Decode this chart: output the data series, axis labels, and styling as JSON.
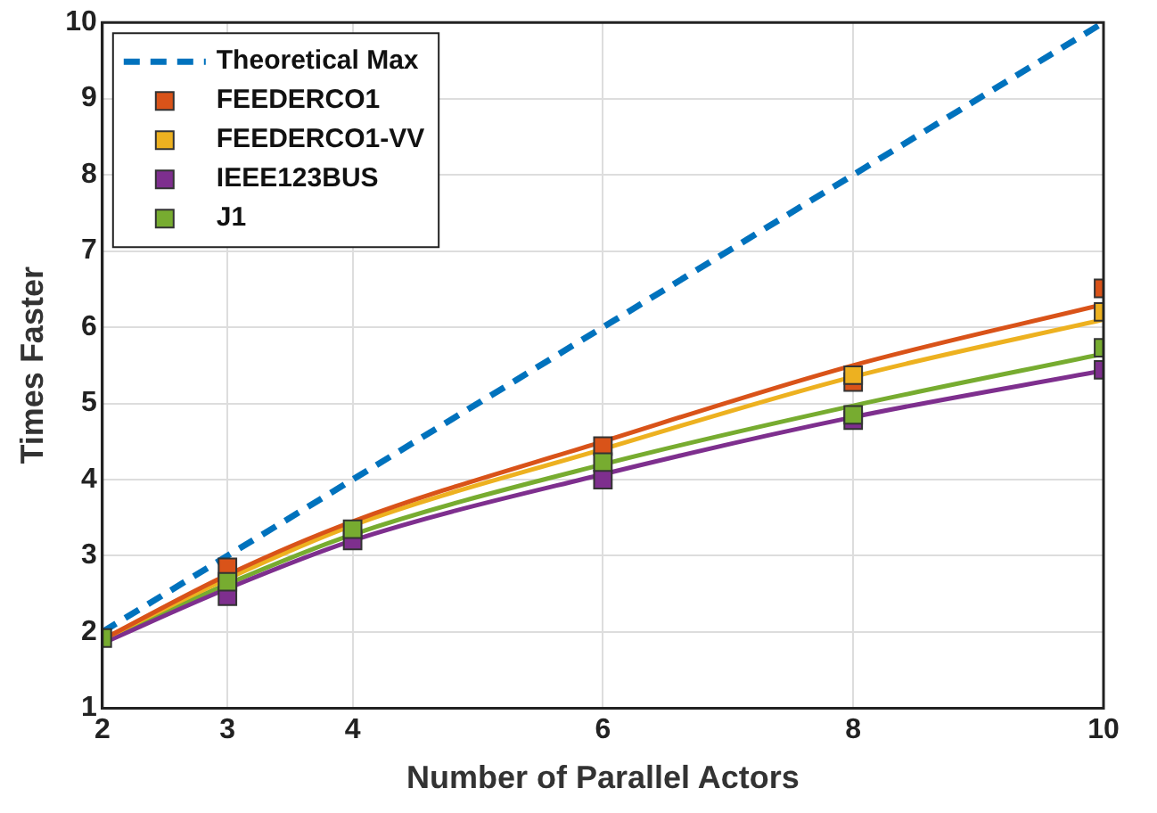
{
  "chart_data": {
    "type": "scatter",
    "xlabel": "Number of Parallel Actors",
    "ylabel": "Times Faster",
    "x": [
      2,
      3,
      4,
      6,
      8,
      10
    ],
    "xlim": [
      2,
      10
    ],
    "xticks": [
      2,
      3,
      4,
      6,
      8,
      10
    ],
    "ylim": [
      1,
      10
    ],
    "yticks": [
      1,
      2,
      3,
      4,
      5,
      6,
      7,
      8,
      9,
      10
    ],
    "grid": true,
    "legend": "top left",
    "marker": "square",
    "series": [
      {
        "name": "Theoretical Max",
        "type": "line",
        "line_style": "dashed",
        "marker": "none",
        "color": "#0072bd",
        "x": [
          2,
          10
        ],
        "values": [
          2,
          10
        ]
      },
      {
        "name": "FEEDERCO1",
        "color": "#d95319",
        "values": [
          null,
          2.85,
          null,
          4.44,
          5.28,
          6.51
        ]
      },
      {
        "name": "FEEDERCO1-VV",
        "color": "#edb120",
        "values": [
          null,
          null,
          null,
          null,
          5.37,
          6.2
        ]
      },
      {
        "name": "IEEE123BUS",
        "color": "#7e2f8e",
        "values": [
          null,
          2.47,
          3.2,
          4.0,
          4.78,
          5.44
        ]
      },
      {
        "name": "J1",
        "color": "#77ac30",
        "values": [
          1.92,
          2.66,
          3.35,
          4.23,
          4.85,
          5.73
        ]
      },
      {
        "type": "line",
        "marker": "none",
        "line_style": "solid",
        "color": "#d95319",
        "values": [
          1.9,
          2.75,
          3.45,
          4.5,
          5.5,
          6.3
        ]
      },
      {
        "type": "line",
        "marker": "none",
        "line_style": "solid",
        "color": "#edb120",
        "values": [
          1.9,
          2.7,
          3.4,
          4.4,
          5.35,
          6.1
        ]
      },
      {
        "type": "line",
        "marker": "none",
        "line_style": "solid",
        "color": "#7e2f8e",
        "values": [
          1.85,
          2.57,
          3.2,
          4.07,
          4.82,
          5.43
        ]
      },
      {
        "type": "line",
        "marker": "none",
        "line_style": "solid",
        "color": "#77ac30",
        "values": [
          1.88,
          2.63,
          3.28,
          4.2,
          4.97,
          5.65
        ]
      }
    ]
  }
}
